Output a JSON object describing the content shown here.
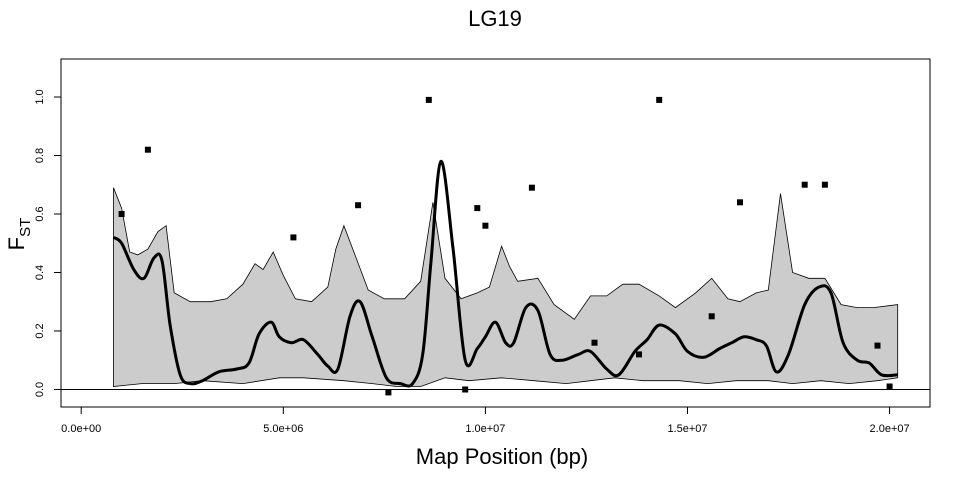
{
  "chart_data": {
    "type": "scatter",
    "title": "LG19",
    "xlabel": "Map Position (bp)",
    "ylabel_main": "F",
    "ylabel_sub": "ST",
    "xlim": [
      -500000,
      21000000
    ],
    "ylim": [
      -0.06,
      1.13
    ],
    "x_ticks": [
      0,
      5000000,
      10000000,
      15000000,
      20000000
    ],
    "x_tick_labels": [
      "0.0e+00",
      "5.0e+06",
      "1.0e+07",
      "1.5e+07",
      "2.0e+07"
    ],
    "y_ticks": [
      0.0,
      0.2,
      0.4,
      0.6,
      0.8,
      1.0
    ],
    "y_tick_labels": [
      "0.0",
      "0.2",
      "0.4",
      "0.6",
      "0.8",
      "1.0"
    ],
    "reference_line_y": 0,
    "grid": false,
    "legend": "none",
    "colors": {
      "band_fill": "#cccccc",
      "stroke": "#000000",
      "points": "#000000"
    },
    "points": {
      "x": [
        1000000,
        1650000,
        5250000,
        6850000,
        7600000,
        8600000,
        9500000,
        9800000,
        10000000,
        11150000,
        12700000,
        13800000,
        14300000,
        15600000,
        16300000,
        17900000,
        18400000,
        19700000,
        20000000
      ],
      "y": [
        0.6,
        0.82,
        0.52,
        0.63,
        -0.01,
        0.99,
        0.0,
        0.62,
        0.56,
        0.69,
        0.16,
        0.12,
        0.99,
        0.25,
        0.64,
        0.7,
        0.7,
        0.15,
        0.01
      ]
    },
    "series": [
      {
        "role": "smoothed-mean",
        "x": [
          800000,
          1000000,
          1300000,
          1550000,
          1800000,
          2000000,
          2200000,
          2450000,
          2700000,
          3000000,
          3400000,
          3850000,
          4150000,
          4400000,
          4700000,
          4900000,
          5200000,
          5500000,
          5850000,
          6100000,
          6350000,
          6650000,
          6900000,
          7200000,
          7550000,
          7900000,
          8200000,
          8450000,
          8650000,
          8900000,
          9200000,
          9500000,
          9800000,
          10000000,
          10250000,
          10500000,
          10700000,
          11000000,
          11300000,
          11600000,
          11900000,
          12300000,
          12600000,
          13000000,
          13300000,
          13700000,
          14000000,
          14300000,
          14700000,
          15000000,
          15400000,
          15800000,
          16100000,
          16400000,
          16700000,
          16950000,
          17200000,
          17500000,
          17900000,
          18250000,
          18550000,
          18850000,
          19200000,
          19500000,
          19800000,
          20200000
        ],
        "y": [
          0.52,
          0.5,
          0.41,
          0.38,
          0.45,
          0.44,
          0.22,
          0.05,
          0.02,
          0.03,
          0.06,
          0.07,
          0.09,
          0.19,
          0.23,
          0.18,
          0.16,
          0.17,
          0.12,
          0.08,
          0.07,
          0.25,
          0.3,
          0.18,
          0.04,
          0.02,
          0.02,
          0.12,
          0.43,
          0.78,
          0.48,
          0.1,
          0.14,
          0.18,
          0.23,
          0.16,
          0.16,
          0.28,
          0.27,
          0.12,
          0.1,
          0.12,
          0.13,
          0.07,
          0.05,
          0.13,
          0.17,
          0.22,
          0.19,
          0.13,
          0.11,
          0.14,
          0.16,
          0.18,
          0.17,
          0.15,
          0.06,
          0.12,
          0.29,
          0.35,
          0.33,
          0.16,
          0.1,
          0.09,
          0.05,
          0.05
        ]
      },
      {
        "role": "band-upper",
        "x": [
          800000,
          1000000,
          1200000,
          1400000,
          1650000,
          1900000,
          2100000,
          2300000,
          2700000,
          3200000,
          3600000,
          4000000,
          4300000,
          4500000,
          4750000,
          5000000,
          5300000,
          5700000,
          6100000,
          6300000,
          6500000,
          6800000,
          7100000,
          7500000,
          8000000,
          8400000,
          8700000,
          9000000,
          9400000,
          9800000,
          10100000,
          10400000,
          10600000,
          10800000,
          11300000,
          11700000,
          12200000,
          12600000,
          13000000,
          13400000,
          13800000,
          14300000,
          14700000,
          15200000,
          15600000,
          16000000,
          16300000,
          16700000,
          17000000,
          17300000,
          17600000,
          18000000,
          18400000,
          18800000,
          19200000,
          19600000,
          20200000
        ],
        "y": [
          0.69,
          0.62,
          0.47,
          0.46,
          0.48,
          0.54,
          0.56,
          0.33,
          0.3,
          0.3,
          0.31,
          0.36,
          0.43,
          0.41,
          0.47,
          0.39,
          0.31,
          0.3,
          0.35,
          0.48,
          0.56,
          0.45,
          0.34,
          0.31,
          0.31,
          0.37,
          0.64,
          0.38,
          0.31,
          0.33,
          0.35,
          0.49,
          0.42,
          0.37,
          0.38,
          0.29,
          0.24,
          0.32,
          0.32,
          0.36,
          0.36,
          0.32,
          0.28,
          0.33,
          0.38,
          0.31,
          0.3,
          0.33,
          0.34,
          0.67,
          0.4,
          0.38,
          0.38,
          0.29,
          0.28,
          0.28,
          0.29
        ]
      },
      {
        "role": "band-lower",
        "x": [
          800000,
          1500000,
          2300000,
          3000000,
          4000000,
          4900000,
          5500000,
          6500000,
          7200000,
          7800000,
          8400000,
          9000000,
          9600000,
          10400000,
          11200000,
          12000000,
          12600000,
          13200000,
          13900000,
          14800000,
          15500000,
          16200000,
          17000000,
          17600000,
          18300000,
          19000000,
          19700000,
          20200000
        ],
        "y": [
          0.01,
          0.02,
          0.02,
          0.03,
          0.02,
          0.04,
          0.04,
          0.03,
          0.02,
          0.01,
          0.01,
          0.04,
          0.03,
          0.04,
          0.03,
          0.02,
          0.03,
          0.04,
          0.03,
          0.03,
          0.02,
          0.03,
          0.03,
          0.02,
          0.03,
          0.02,
          0.03,
          0.04
        ]
      }
    ]
  }
}
